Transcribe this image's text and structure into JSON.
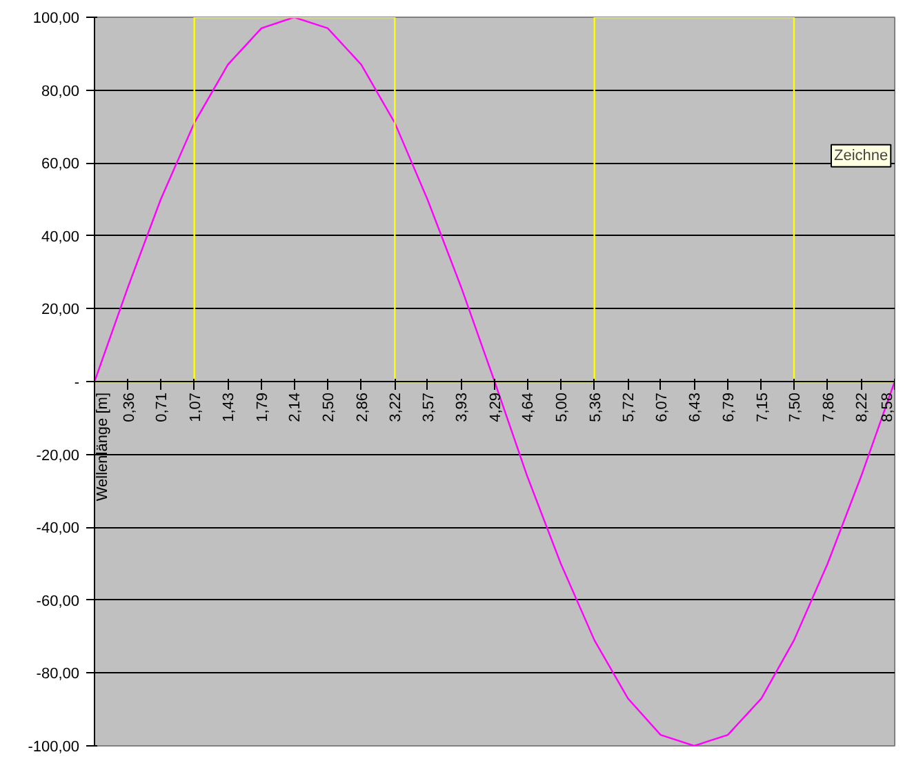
{
  "chart_data": {
    "type": "line",
    "x": [
      0,
      0.36,
      0.71,
      1.07,
      1.43,
      1.79,
      2.14,
      2.5,
      2.86,
      3.22,
      3.57,
      3.93,
      4.29,
      4.64,
      5.0,
      5.36,
      5.72,
      6.07,
      6.43,
      6.79,
      7.15,
      7.5,
      7.86,
      8.22,
      8.58
    ],
    "series": [
      {
        "color": "#ff00ff",
        "values": [
          0,
          26,
          50,
          71,
          87,
          97,
          100,
          97,
          87,
          71,
          50,
          26,
          0,
          -26,
          -50,
          -71,
          -87,
          -97,
          -100,
          -97,
          -87,
          -71,
          -50,
          -26,
          0
        ]
      },
      {
        "color": "#ffff00",
        "x": [
          0,
          1.07,
          1.07,
          3.22,
          3.22,
          5.36,
          5.36,
          7.5,
          7.5,
          8.58
        ],
        "values": [
          0,
          0,
          100,
          100,
          0,
          0,
          100,
          100,
          0,
          0
        ]
      }
    ],
    "xlim": [
      0,
      8.58
    ],
    "xticks": [
      {
        "value": 0,
        "label": "Wellenlänge [m]"
      },
      {
        "value": 0.36,
        "label": "0,36"
      },
      {
        "value": 0.71,
        "label": "0,71"
      },
      {
        "value": 1.07,
        "label": "1,07"
      },
      {
        "value": 1.43,
        "label": "1,43"
      },
      {
        "value": 1.79,
        "label": "1,79"
      },
      {
        "value": 2.14,
        "label": "2,14"
      },
      {
        "value": 2.5,
        "label": "2,50"
      },
      {
        "value": 2.86,
        "label": "2,86"
      },
      {
        "value": 3.22,
        "label": "3,22"
      },
      {
        "value": 3.57,
        "label": "3,57"
      },
      {
        "value": 3.93,
        "label": "3,93"
      },
      {
        "value": 4.29,
        "label": "4,29"
      },
      {
        "value": 4.64,
        "label": "4,64"
      },
      {
        "value": 5.0,
        "label": "5,00"
      },
      {
        "value": 5.36,
        "label": "5,36"
      },
      {
        "value": 5.72,
        "label": "5,72"
      },
      {
        "value": 6.07,
        "label": "6,07"
      },
      {
        "value": 6.43,
        "label": "6,43"
      },
      {
        "value": 6.79,
        "label": "6,79"
      },
      {
        "value": 7.15,
        "label": "7,15"
      },
      {
        "value": 7.5,
        "label": "7,50"
      },
      {
        "value": 7.86,
        "label": "7,86"
      },
      {
        "value": 8.22,
        "label": "8,22"
      },
      {
        "value": 8.58,
        "label": "8,58"
      }
    ],
    "ylim": [
      -100,
      100
    ],
    "yticks": [
      {
        "value": -100,
        "label": "-100,00"
      },
      {
        "value": -80,
        "label": "-80,00"
      },
      {
        "value": -60,
        "label": "-60,00"
      },
      {
        "value": -40,
        "label": "-40,00"
      },
      {
        "value": -20,
        "label": "-20,00"
      },
      {
        "value": 0,
        "label": "-"
      },
      {
        "value": 20,
        "label": "20,00"
      },
      {
        "value": 40,
        "label": "40,00"
      },
      {
        "value": 60,
        "label": "60,00"
      },
      {
        "value": 80,
        "label": "80,00"
      },
      {
        "value": 100,
        "label": "100,00"
      }
    ],
    "grid": "y",
    "marker": "none",
    "line_style": "solid",
    "annotations": [
      "Zeichne"
    ]
  }
}
